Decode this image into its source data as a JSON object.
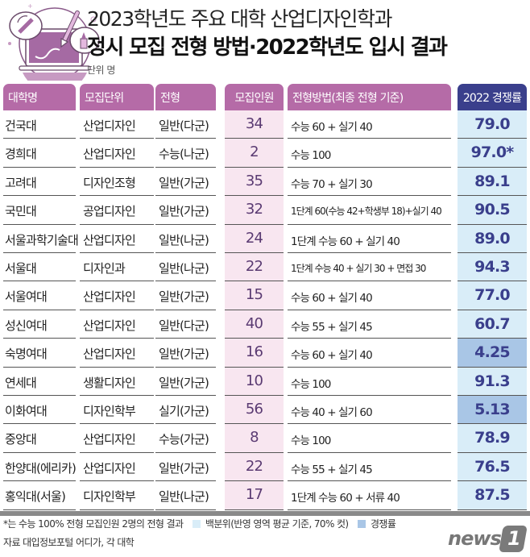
{
  "header": {
    "title_line1": "2023학년도 주요 대학 산업디자인학과",
    "title_line2": "정시 모집 전형 방법·2022학년도 입시 결과",
    "unit": "단위 명",
    "illustration": "laptop-design-tools-icon"
  },
  "colors": {
    "header_purple": "#b56ba7",
    "header_navy": "#3a3f8c",
    "count_bg": "#f8e6f0",
    "percentile_bg": "#d9edf8",
    "competition_bg": "#a9c6e6",
    "value_text": "#3a3f8c"
  },
  "table": {
    "columns": [
      "대학명",
      "모집단위",
      "전형",
      "모집인원",
      "전형방법(최종 전형 기준)",
      "2022 경쟁률"
    ],
    "rows": [
      {
        "univ": "건국대",
        "unit": "산업디자인",
        "type": "일반(다군)",
        "count": "34",
        "method": "수능 60 + 실기 40",
        "result": "79.0",
        "kind": "percentile"
      },
      {
        "univ": "경희대",
        "unit": "산업디자인",
        "type": "수능(나군)",
        "count": "2",
        "method": "수능 100",
        "result": "97.0*",
        "kind": "percentile"
      },
      {
        "univ": "고려대",
        "unit": "디자인조형",
        "type": "일반(가군)",
        "count": "35",
        "method": "수능 70 + 실기 30",
        "result": "89.1",
        "kind": "percentile"
      },
      {
        "univ": "국민대",
        "unit": "공업디자인",
        "type": "일반(가군)",
        "count": "32",
        "method": "1단계 60(수능 42+학생부 18)+실기 40",
        "result": "90.5",
        "kind": "percentile"
      },
      {
        "univ": "서울과학기술대",
        "unit": "산업디자인",
        "type": "일반(나군)",
        "count": "24",
        "method": "1단계 수능 60 + 실기 40",
        "result": "89.0",
        "kind": "percentile"
      },
      {
        "univ": "서울대",
        "unit": "디자인과",
        "type": "일반(나군)",
        "count": "22",
        "method": "1단계 수능 40 + 실기 30 + 면접 30",
        "result": "94.3",
        "kind": "percentile"
      },
      {
        "univ": "서울여대",
        "unit": "산업디자인",
        "type": "일반(가군)",
        "count": "15",
        "method": "수능 60 + 실기 40",
        "result": "77.0",
        "kind": "percentile"
      },
      {
        "univ": "성신여대",
        "unit": "산업디자인",
        "type": "일반(다군)",
        "count": "40",
        "method": "수능 55 + 실기 45",
        "result": "60.7",
        "kind": "percentile"
      },
      {
        "univ": "숙명여대",
        "unit": "산업디자인",
        "type": "일반(가군)",
        "count": "16",
        "method": "수능 60 + 실기 40",
        "result": "4.25",
        "kind": "competition"
      },
      {
        "univ": "연세대",
        "unit": "생활디자인",
        "type": "일반(가군)",
        "count": "10",
        "method": "수능 100",
        "result": "91.3",
        "kind": "percentile"
      },
      {
        "univ": "이화여대",
        "unit": "디자인학부",
        "type": "실기(가군)",
        "count": "56",
        "method": "수능 40 + 실기 60",
        "result": "5.13",
        "kind": "competition"
      },
      {
        "univ": "중앙대",
        "unit": "산업디자인",
        "type": "수능(가군)",
        "count": "8",
        "method": "수능 100",
        "result": "78.9",
        "kind": "percentile"
      },
      {
        "univ": "한양대(에리카)",
        "unit": "산업디자인",
        "type": "일반(가군)",
        "count": "22",
        "method": "수능 55 + 실기 45",
        "result": "76.5",
        "kind": "percentile"
      },
      {
        "univ": "홍익대(서울)",
        "unit": "디자인학부",
        "type": "일반(나군)",
        "count": "17",
        "method": "1단계 수능 60 + 서류 40",
        "result": "87.5",
        "kind": "percentile"
      }
    ]
  },
  "footer": {
    "note": "*는 수능 100% 전형 모집인원 2명의 전형 결과",
    "legend_percentile": "백분위(반영 영역 평균 기준, 70% 컷)",
    "legend_competition": "경쟁률",
    "source": "자료 대입정보포털 어디가, 각 대학",
    "logo_text": "news",
    "logo_mark": "1"
  },
  "chart_data": {
    "type": "table",
    "title": "2023학년도 주요 대학 산업디자인학과 정시 모집 전형 방법·2022학년도 입시 결과",
    "subtitle": "단위 명",
    "columns": [
      "대학명",
      "모집단위",
      "전형",
      "모집인원",
      "전형방법(최종 전형 기준)",
      "2022 경쟁률"
    ],
    "rows": [
      [
        "건국대",
        "산업디자인",
        "일반(다군)",
        34,
        "수능 60 + 실기 40",
        "79.0"
      ],
      [
        "경희대",
        "산업디자인",
        "수능(나군)",
        2,
        "수능 100",
        "97.0*"
      ],
      [
        "고려대",
        "디자인조형",
        "일반(가군)",
        35,
        "수능 70 + 실기 30",
        "89.1"
      ],
      [
        "국민대",
        "공업디자인",
        "일반(가군)",
        32,
        "1단계 60(수능 42+학생부 18)+실기 40",
        "90.5"
      ],
      [
        "서울과학기술대",
        "산업디자인",
        "일반(나군)",
        24,
        "1단계 수능 60 + 실기 40",
        "89.0"
      ],
      [
        "서울대",
        "디자인과",
        "일반(나군)",
        22,
        "1단계 수능 40 + 실기 30 + 면접 30",
        "94.3"
      ],
      [
        "서울여대",
        "산업디자인",
        "일반(가군)",
        15,
        "수능 60 + 실기 40",
        "77.0"
      ],
      [
        "성신여대",
        "산업디자인",
        "일반(다군)",
        40,
        "수능 55 + 실기 45",
        "60.7"
      ],
      [
        "숙명여대",
        "산업디자인",
        "일반(가군)",
        16,
        "수능 60 + 실기 40",
        "4.25"
      ],
      [
        "연세대",
        "생활디자인",
        "일반(가군)",
        10,
        "수능 100",
        "91.3"
      ],
      [
        "이화여대",
        "디자인학부",
        "실기(가군)",
        56,
        "수능 40 + 실기 60",
        "5.13"
      ],
      [
        "중앙대",
        "산업디자인",
        "수능(가군)",
        8,
        "수능 100",
        "78.9"
      ],
      [
        "한양대(에리카)",
        "산업디자인",
        "일반(가군)",
        22,
        "수능 55 + 실기 45",
        "76.5"
      ],
      [
        "홍익대(서울)",
        "디자인학부",
        "일반(나군)",
        17,
        "1단계 수능 60 + 서류 40",
        "87.5"
      ]
    ],
    "legend": [
      {
        "label": "백분위(반영 영역 평균 기준, 70% 컷)",
        "color": "#d9edf8"
      },
      {
        "label": "경쟁률",
        "color": "#a9c6e6"
      }
    ],
    "annotations": [
      "*는 수능 100% 전형 모집인원 2명의 전형 결과"
    ],
    "source": "자료 대입정보포털 어디가, 각 대학"
  }
}
